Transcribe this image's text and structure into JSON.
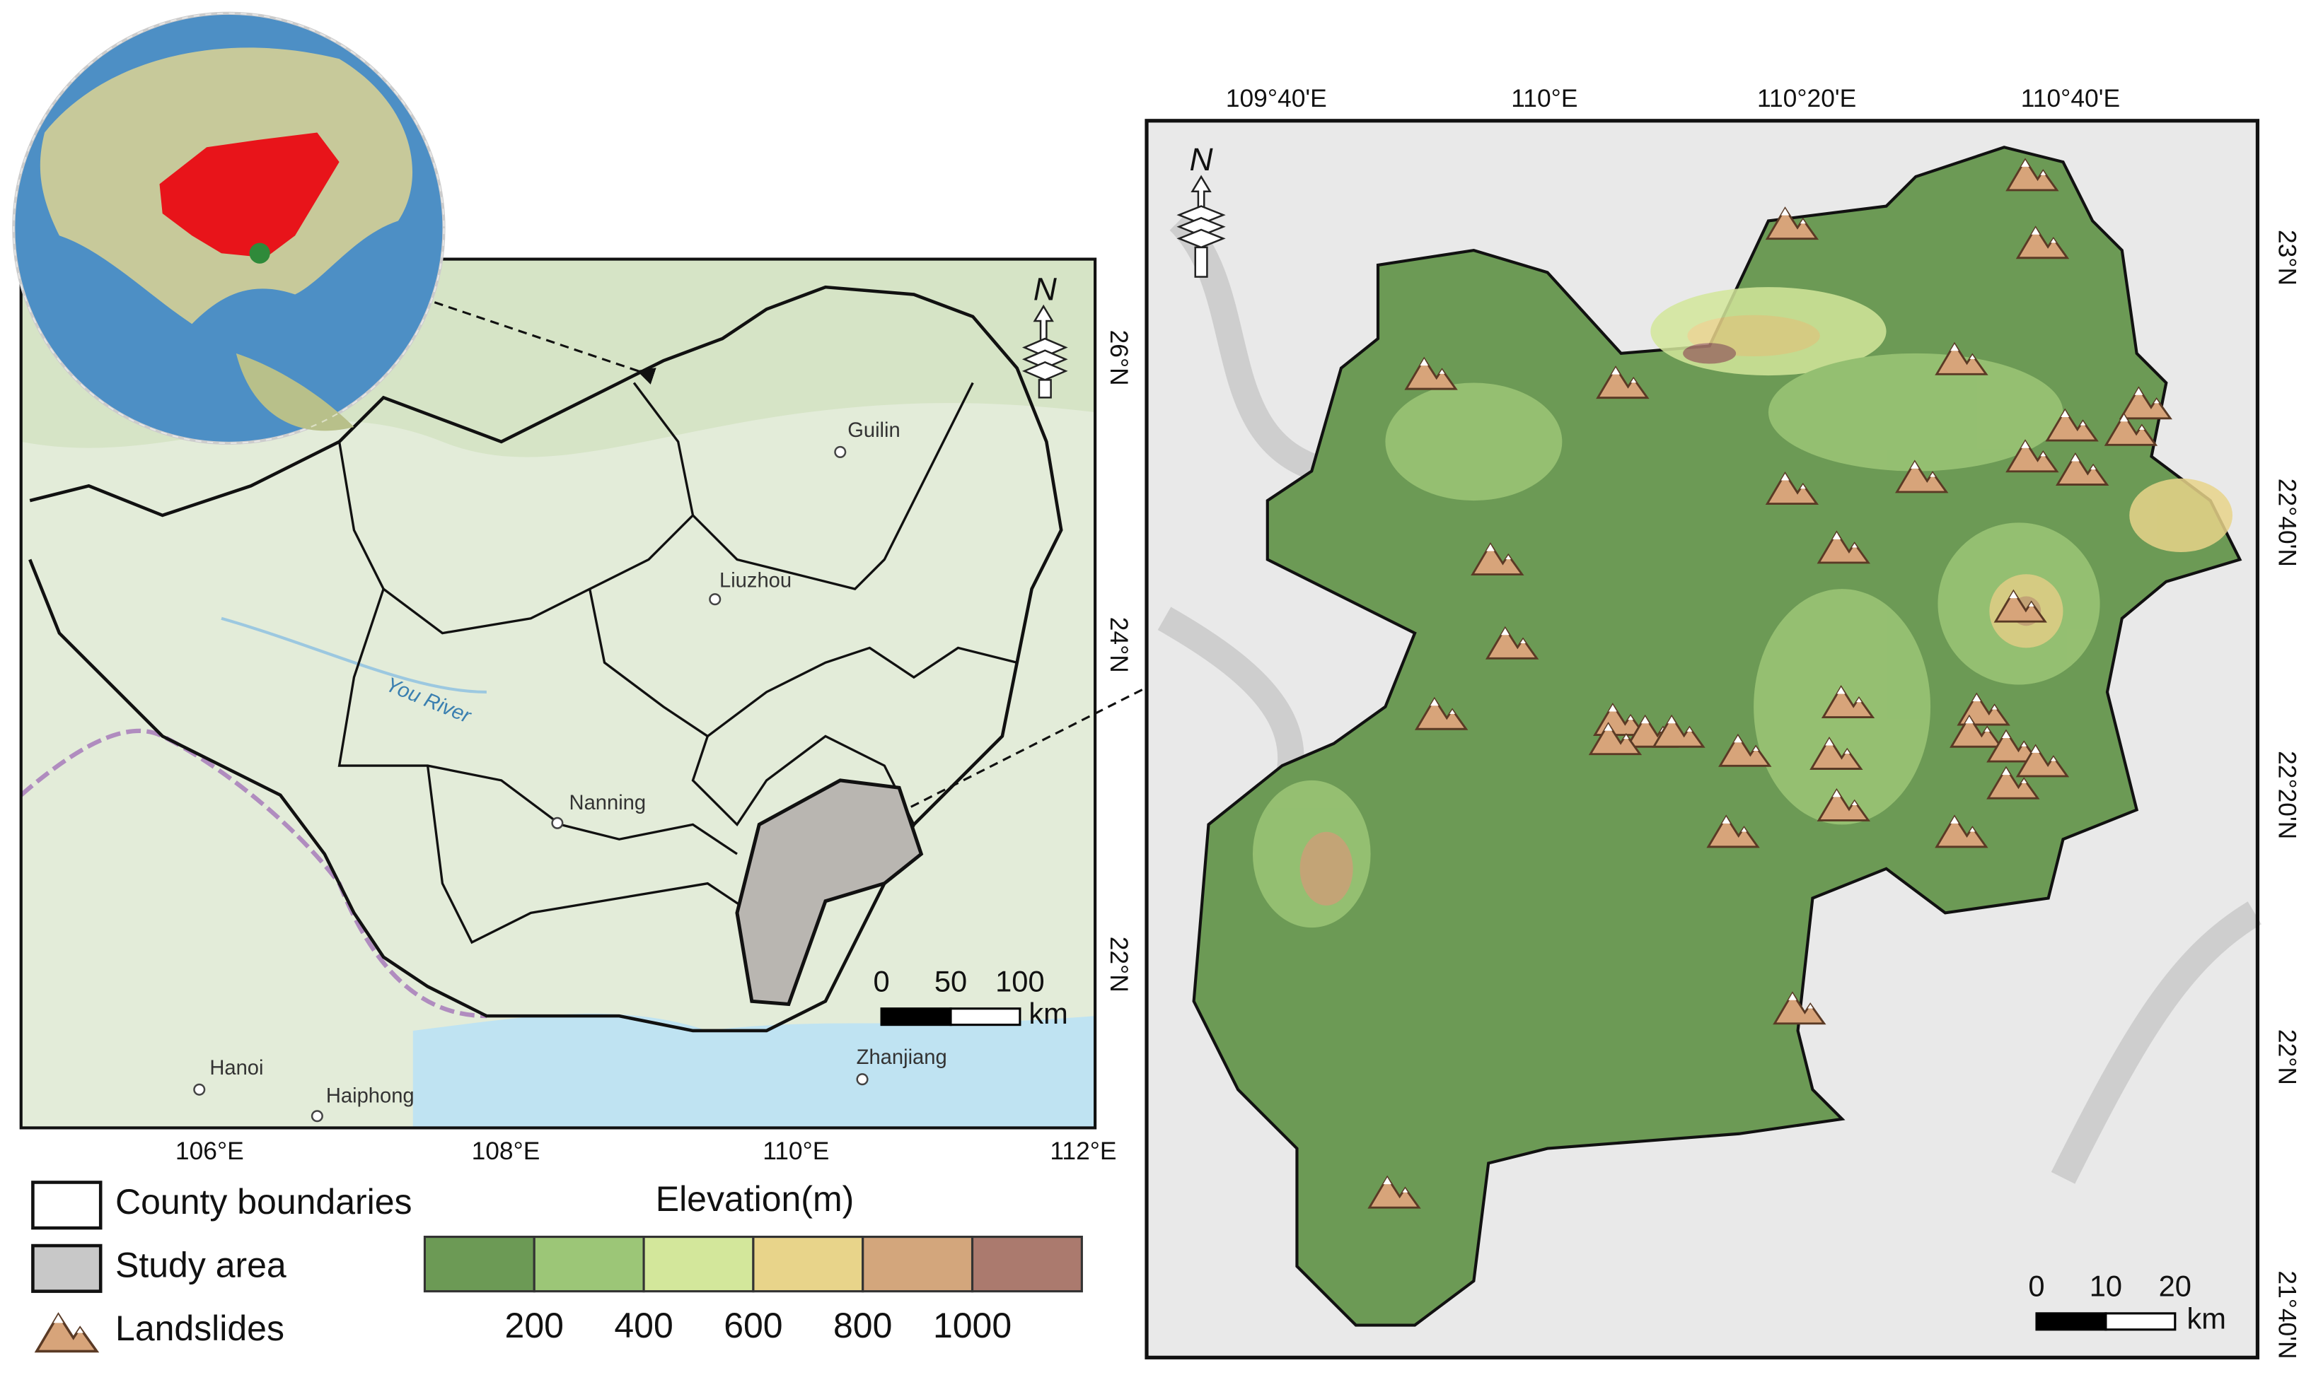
{
  "left_map": {
    "x_labels": [
      "106°E",
      "108°E",
      "110°E",
      "112°E"
    ],
    "y_labels": [
      "26°N",
      "24°N",
      "22°N"
    ],
    "places": [
      "Guilin",
      "Liuzhou",
      "Nanning",
      "Hanoi",
      "Haiphong",
      "Zhanjiang"
    ],
    "river": "You River",
    "north": "N",
    "scale": {
      "ticks": [
        0,
        50,
        100
      ],
      "unit": "km"
    }
  },
  "right_map": {
    "x_labels": [
      "109°40'E",
      "110°E",
      "110°20'E",
      "110°40'E"
    ],
    "y_labels": [
      "23°N",
      "22°40'N",
      "22°20'N",
      "22°N",
      "21°40'N"
    ],
    "north": "N",
    "scale": {
      "ticks": [
        0,
        10,
        20
      ],
      "unit": "km"
    }
  },
  "legend": {
    "items": [
      "County boundaries",
      "Study area",
      "Landslides"
    ],
    "elevation": {
      "title": "Elevation(m)",
      "labels": [
        200,
        400,
        600,
        800,
        1000
      ],
      "colors": [
        "#6c9a55",
        "#9cc677",
        "#d3e79b",
        "#e8d48a",
        "#d3a67c",
        "#ab7a6e"
      ]
    }
  }
}
